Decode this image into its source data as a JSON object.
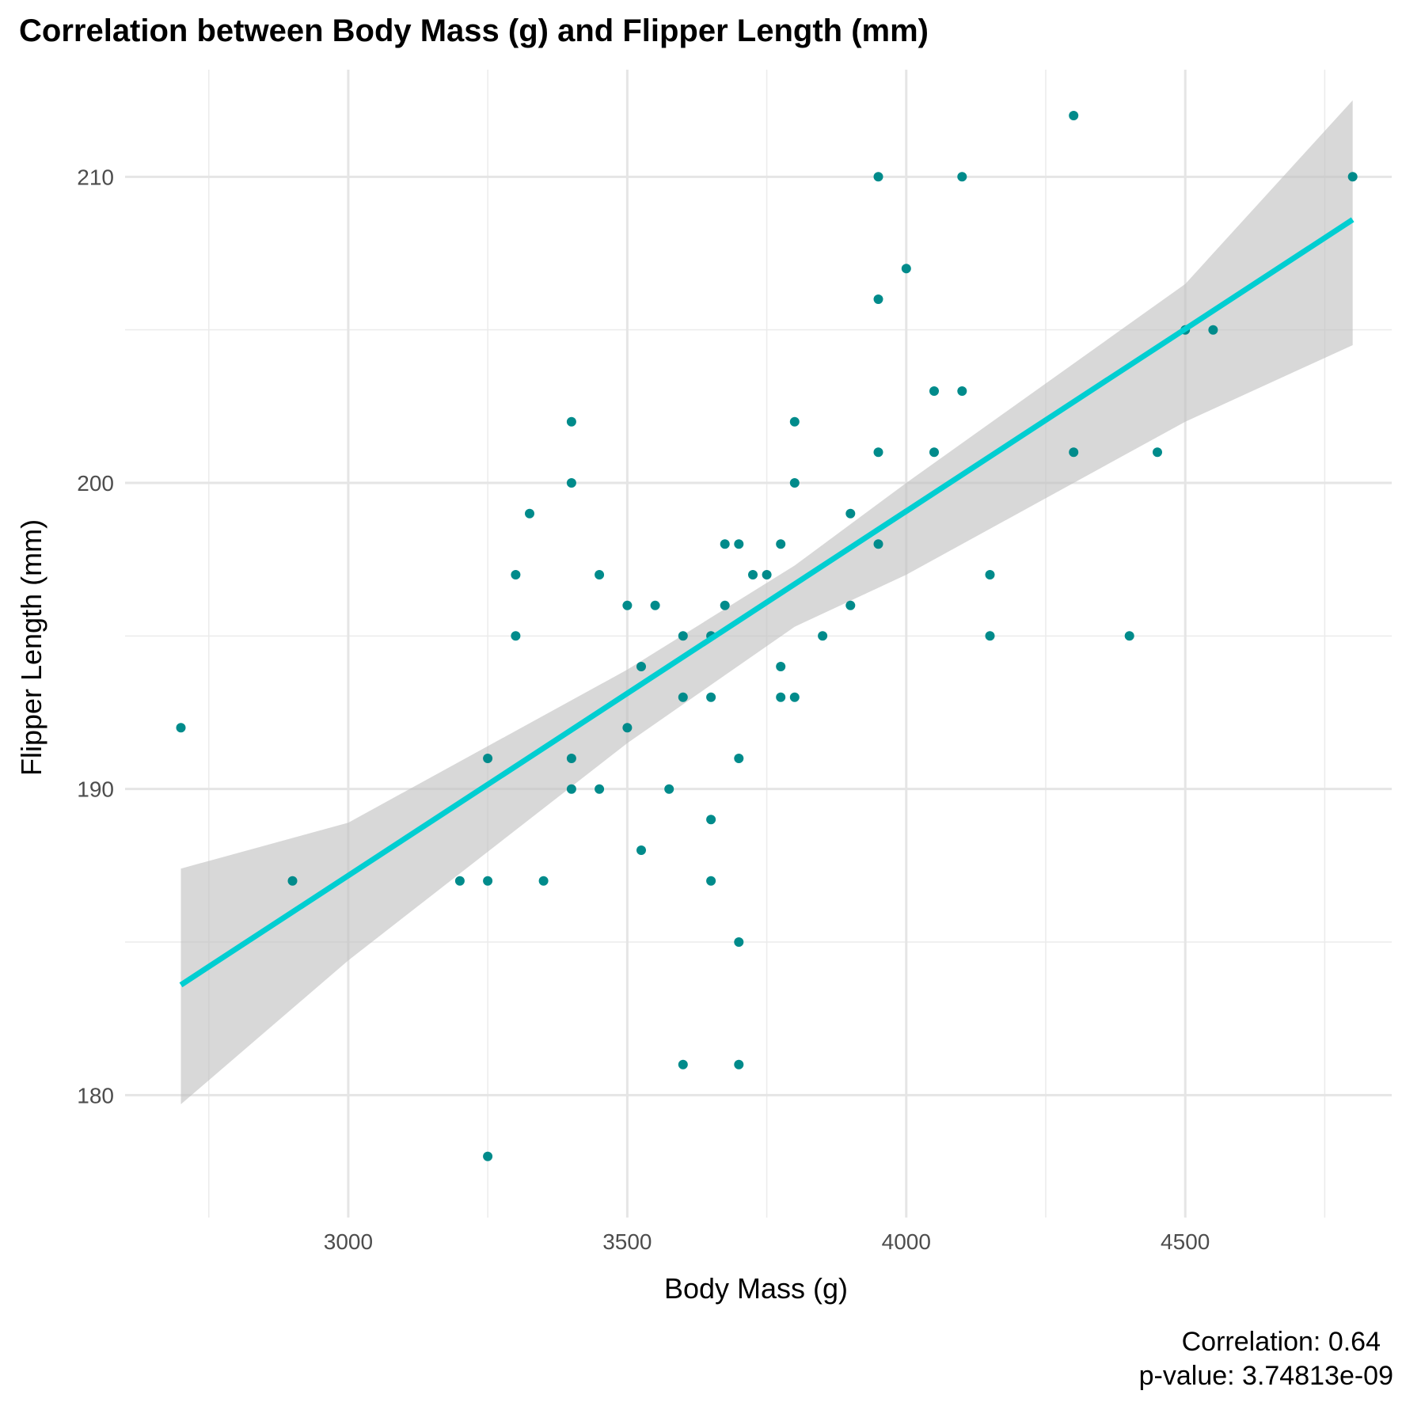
{
  "chart_data": {
    "type": "scatter",
    "title": "Correlation between Body Mass (g) and Flipper Length (mm)",
    "xlabel": "Body Mass (g)",
    "ylabel": "Flipper Length (mm)",
    "xlim": [
      2600,
      4870
    ],
    "ylim": [
      176,
      213.5
    ],
    "x_ticks": [
      3000,
      3500,
      4000,
      4500
    ],
    "x_tick_labels": [
      "3000",
      "3500",
      "4000",
      "4500"
    ],
    "x_minor_ticks": [
      2750,
      3250,
      3750,
      4250,
      4750
    ],
    "y_ticks": [
      180,
      190,
      200,
      210
    ],
    "y_tick_labels": [
      "180",
      "190",
      "200",
      "210"
    ],
    "y_minor_ticks": [
      185,
      195,
      205
    ],
    "grid": true,
    "point_color": "#008B8B",
    "line_color": "#00CED1",
    "band_color": "#BEBEBE",
    "points": [
      {
        "x": 2700,
        "y": 192
      },
      {
        "x": 2900,
        "y": 187
      },
      {
        "x": 3200,
        "y": 187
      },
      {
        "x": 3250,
        "y": 191
      },
      {
        "x": 3250,
        "y": 187
      },
      {
        "x": 3250,
        "y": 178
      },
      {
        "x": 3300,
        "y": 197
      },
      {
        "x": 3300,
        "y": 195
      },
      {
        "x": 3325,
        "y": 199
      },
      {
        "x": 3350,
        "y": 187
      },
      {
        "x": 3400,
        "y": 202
      },
      {
        "x": 3400,
        "y": 200
      },
      {
        "x": 3400,
        "y": 191
      },
      {
        "x": 3400,
        "y": 190
      },
      {
        "x": 3450,
        "y": 197
      },
      {
        "x": 3450,
        "y": 190
      },
      {
        "x": 3500,
        "y": 196
      },
      {
        "x": 3500,
        "y": 192
      },
      {
        "x": 3525,
        "y": 194
      },
      {
        "x": 3525,
        "y": 188
      },
      {
        "x": 3550,
        "y": 196
      },
      {
        "x": 3575,
        "y": 190
      },
      {
        "x": 3600,
        "y": 195
      },
      {
        "x": 3600,
        "y": 193
      },
      {
        "x": 3600,
        "y": 181
      },
      {
        "x": 3650,
        "y": 195
      },
      {
        "x": 3650,
        "y": 193
      },
      {
        "x": 3650,
        "y": 189
      },
      {
        "x": 3650,
        "y": 187
      },
      {
        "x": 3675,
        "y": 198
      },
      {
        "x": 3675,
        "y": 196
      },
      {
        "x": 3700,
        "y": 198
      },
      {
        "x": 3700,
        "y": 191
      },
      {
        "x": 3700,
        "y": 185
      },
      {
        "x": 3700,
        "y": 181
      },
      {
        "x": 3725,
        "y": 197
      },
      {
        "x": 3750,
        "y": 197
      },
      {
        "x": 3775,
        "y": 198
      },
      {
        "x": 3775,
        "y": 194
      },
      {
        "x": 3775,
        "y": 193
      },
      {
        "x": 3800,
        "y": 202
      },
      {
        "x": 3800,
        "y": 200
      },
      {
        "x": 3800,
        "y": 193
      },
      {
        "x": 3850,
        "y": 195
      },
      {
        "x": 3900,
        "y": 199
      },
      {
        "x": 3900,
        "y": 196
      },
      {
        "x": 3950,
        "y": 210
      },
      {
        "x": 3950,
        "y": 206
      },
      {
        "x": 3950,
        "y": 201
      },
      {
        "x": 3950,
        "y": 198
      },
      {
        "x": 4000,
        "y": 207
      },
      {
        "x": 4050,
        "y": 203
      },
      {
        "x": 4050,
        "y": 201
      },
      {
        "x": 4100,
        "y": 210
      },
      {
        "x": 4100,
        "y": 203
      },
      {
        "x": 4150,
        "y": 197
      },
      {
        "x": 4150,
        "y": 195
      },
      {
        "x": 4300,
        "y": 212
      },
      {
        "x": 4300,
        "y": 201
      },
      {
        "x": 4400,
        "y": 195
      },
      {
        "x": 4450,
        "y": 201
      },
      {
        "x": 4500,
        "y": 205
      },
      {
        "x": 4550,
        "y": 205
      },
      {
        "x": 4800,
        "y": 210
      }
    ],
    "fit": {
      "x0": 2700,
      "y0": 183.6,
      "x1": 4800,
      "y1": 208.6
    },
    "confidence_band": {
      "x": [
        2700,
        3000,
        3500,
        3800,
        4000,
        4500,
        4800
      ],
      "upper": [
        187.4,
        188.9,
        193.9,
        197.3,
        200.0,
        206.5,
        212.5
      ],
      "lower": [
        179.7,
        184.4,
        191.5,
        195.3,
        197.0,
        202.0,
        204.5
      ]
    },
    "annotation": {
      "correlation": "Correlation: 0.64",
      "p_value": "p-value: 3.74813e-09"
    }
  }
}
